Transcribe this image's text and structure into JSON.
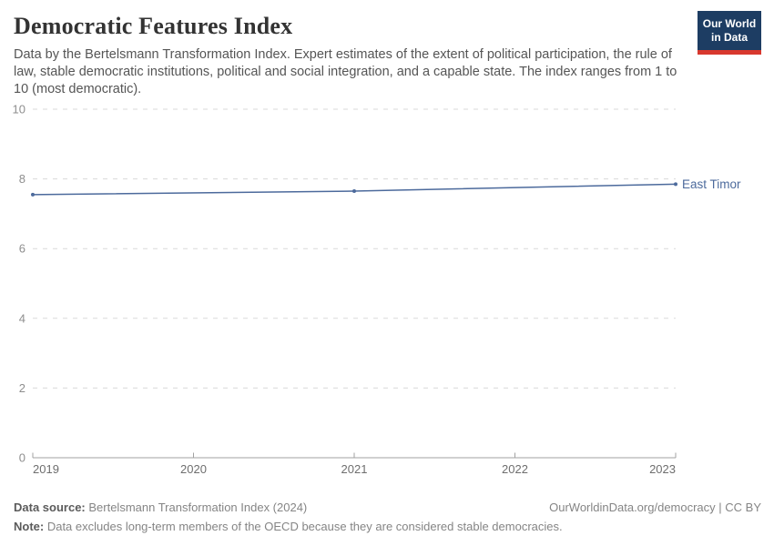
{
  "header": {
    "title": "Democratic Features Index",
    "subtitle": "Data by the Bertelsmann Transformation Index. Expert estimates of the extent of political participation, the rule of law, stable democratic institutions, political and social integration, and a capable state. The index ranges from 1 to 10 (most democratic).",
    "logo": {
      "line1": "Our World",
      "line2": "in Data",
      "bg_color": "#1d3d63",
      "accent_color": "#d8382e"
    }
  },
  "chart_data": {
    "type": "line",
    "title": "Democratic Features Index",
    "series": [
      {
        "name": "East Timor",
        "color": "#4C6A9C",
        "x": [
          2019,
          2021,
          2023
        ],
        "values": [
          7.55,
          7.65,
          7.85
        ]
      }
    ],
    "xlabel": "",
    "ylabel": "",
    "xlim": [
      2019,
      2023
    ],
    "ylim": [
      0,
      10
    ],
    "x_ticks": [
      "2019",
      "2020",
      "2021",
      "2022",
      "2023"
    ],
    "x_tick_values": [
      2019,
      2020,
      2021,
      2022,
      2023
    ],
    "y_ticks": [
      "0",
      "2",
      "4",
      "6",
      "8",
      "10"
    ],
    "y_tick_values": [
      0,
      2,
      4,
      6,
      8,
      10
    ],
    "grid": "horizontal dashed",
    "gridline_color": "#dadada",
    "axis_color": "#a1a1a1",
    "tick_label_color": "#8e8e8e",
    "legend_position": "end-of-line label"
  },
  "footer": {
    "source_label": "Data source:",
    "source_text": " Bertelsmann Transformation Index (2024)",
    "link_text": "OurWorldinData.org/democracy | CC BY",
    "note_label": "Note:",
    "note_text": " Data excludes long-term members of the OECD because they are considered stable democracies."
  }
}
